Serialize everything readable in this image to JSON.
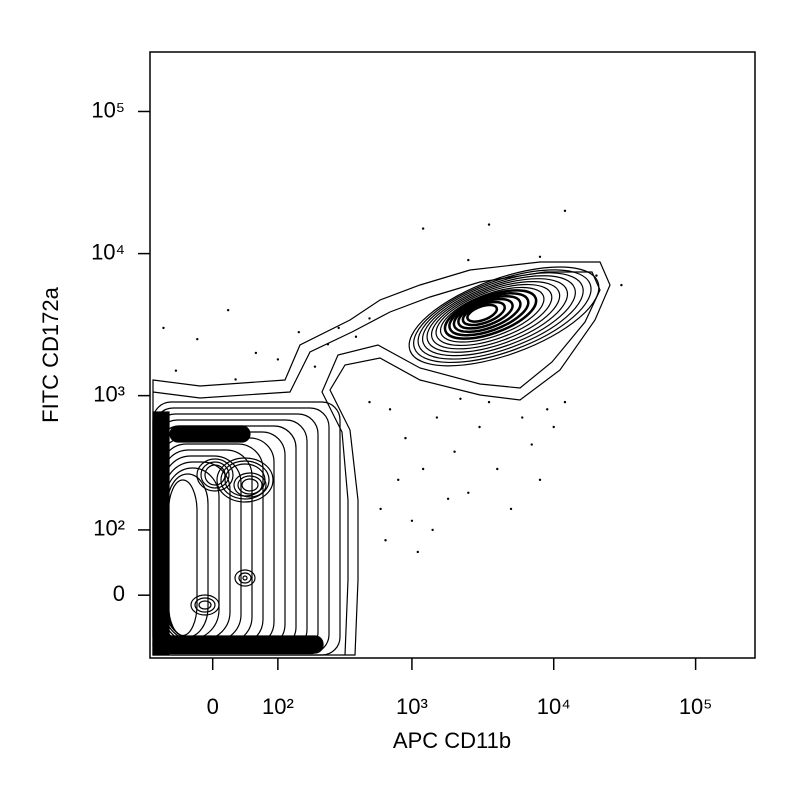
{
  "chart_data": {
    "type": "contour",
    "x_label": "APC CD11b",
    "y_label": "FITC CD172a",
    "xscale": "arcsinh",
    "yscale": "arcsinh",
    "xlim": [
      -95,
      262144
    ],
    "ylim": [
      -95,
      262144
    ],
    "xticks": [
      0,
      {
        "value": 100,
        "label": "10²"
      },
      {
        "value": 1000,
        "label": "10³"
      },
      {
        "value": 10000,
        "label": "10⁴"
      },
      {
        "value": 100000,
        "label": "10⁵"
      }
    ],
    "yticks": [
      0,
      {
        "value": 100,
        "label": "10²"
      },
      {
        "value": 1000,
        "label": "10³"
      },
      {
        "value": 10000,
        "label": "10⁴"
      },
      {
        "value": 100000,
        "label": "10⁵"
      }
    ],
    "color": "#000000",
    "x": [
      700,
      900,
      1200,
      1500,
      2000,
      2500,
      3000,
      4000,
      5000,
      800,
      600,
      1000,
      1800,
      3500,
      6000,
      7000,
      9000,
      10000,
      12000,
      500,
      2200,
      1400,
      650,
      1100,
      8000,
      -50,
      -20,
      30,
      60,
      100,
      150,
      200,
      250,
      300,
      400,
      500,
      -70,
      20,
      1200,
      3500,
      12000,
      20000,
      30000,
      2500,
      8000
    ],
    "y": [
      800,
      500,
      300,
      700,
      400,
      200,
      600,
      300,
      150,
      250,
      150,
      120,
      180,
      900,
      700,
      450,
      800,
      600,
      900,
      900,
      950,
      100,
      80,
      60,
      250,
      1500,
      2500,
      1300,
      2000,
      1800,
      2800,
      1600,
      2300,
      3000,
      2600,
      3500,
      3000,
      4000,
      15000,
      16000,
      20000,
      7000,
      6000,
      9000,
      9500
    ]
  }
}
